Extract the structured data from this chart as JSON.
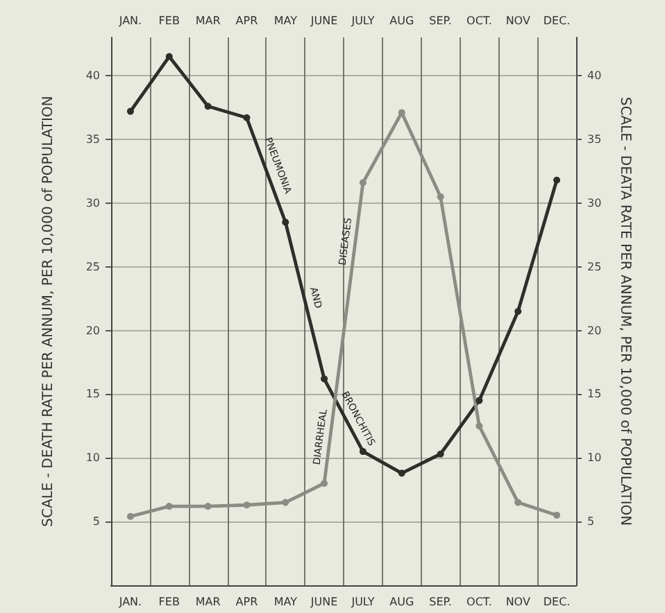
{
  "chart_data": {
    "type": "line",
    "categories": [
      "JAN.",
      "FEB",
      "MAR",
      "APR",
      "MAY",
      "JUNE",
      "JULY",
      "AUG",
      "SEP.",
      "OCT.",
      "NOV",
      "DEC."
    ],
    "series": [
      {
        "name": "PNEUMONIA AND BRONCHITIS",
        "color": "#2e2e2a",
        "values": [
          37.2,
          41.5,
          37.6,
          36.7,
          28.5,
          16.2,
          10.5,
          8.8,
          10.3,
          14.5,
          21.5,
          31.8
        ]
      },
      {
        "name": "DIARRHEAL DISEASES",
        "color": "#8c8c84",
        "values": [
          5.4,
          6.2,
          6.2,
          6.3,
          6.5,
          8.0,
          31.6,
          37.1,
          30.5,
          12.5,
          6.5,
          5.5
        ]
      }
    ],
    "ylim": [
      0,
      43
    ],
    "yticks": [
      5,
      10,
      15,
      20,
      25,
      30,
      35,
      40
    ],
    "y2lim": [
      0,
      43
    ],
    "y2ticks": [
      5,
      10,
      15,
      20,
      25,
      30,
      35,
      40
    ],
    "ylabel": "SCALE - DEATH RATE PER ANNUM, PER 10,000 of POPULATION",
    "y2label": "SCALE - DEATA RATE PER ANNUM, PER 10,000 of POPULATION",
    "grid": true,
    "marker": "circle",
    "line_style": "solid"
  }
}
